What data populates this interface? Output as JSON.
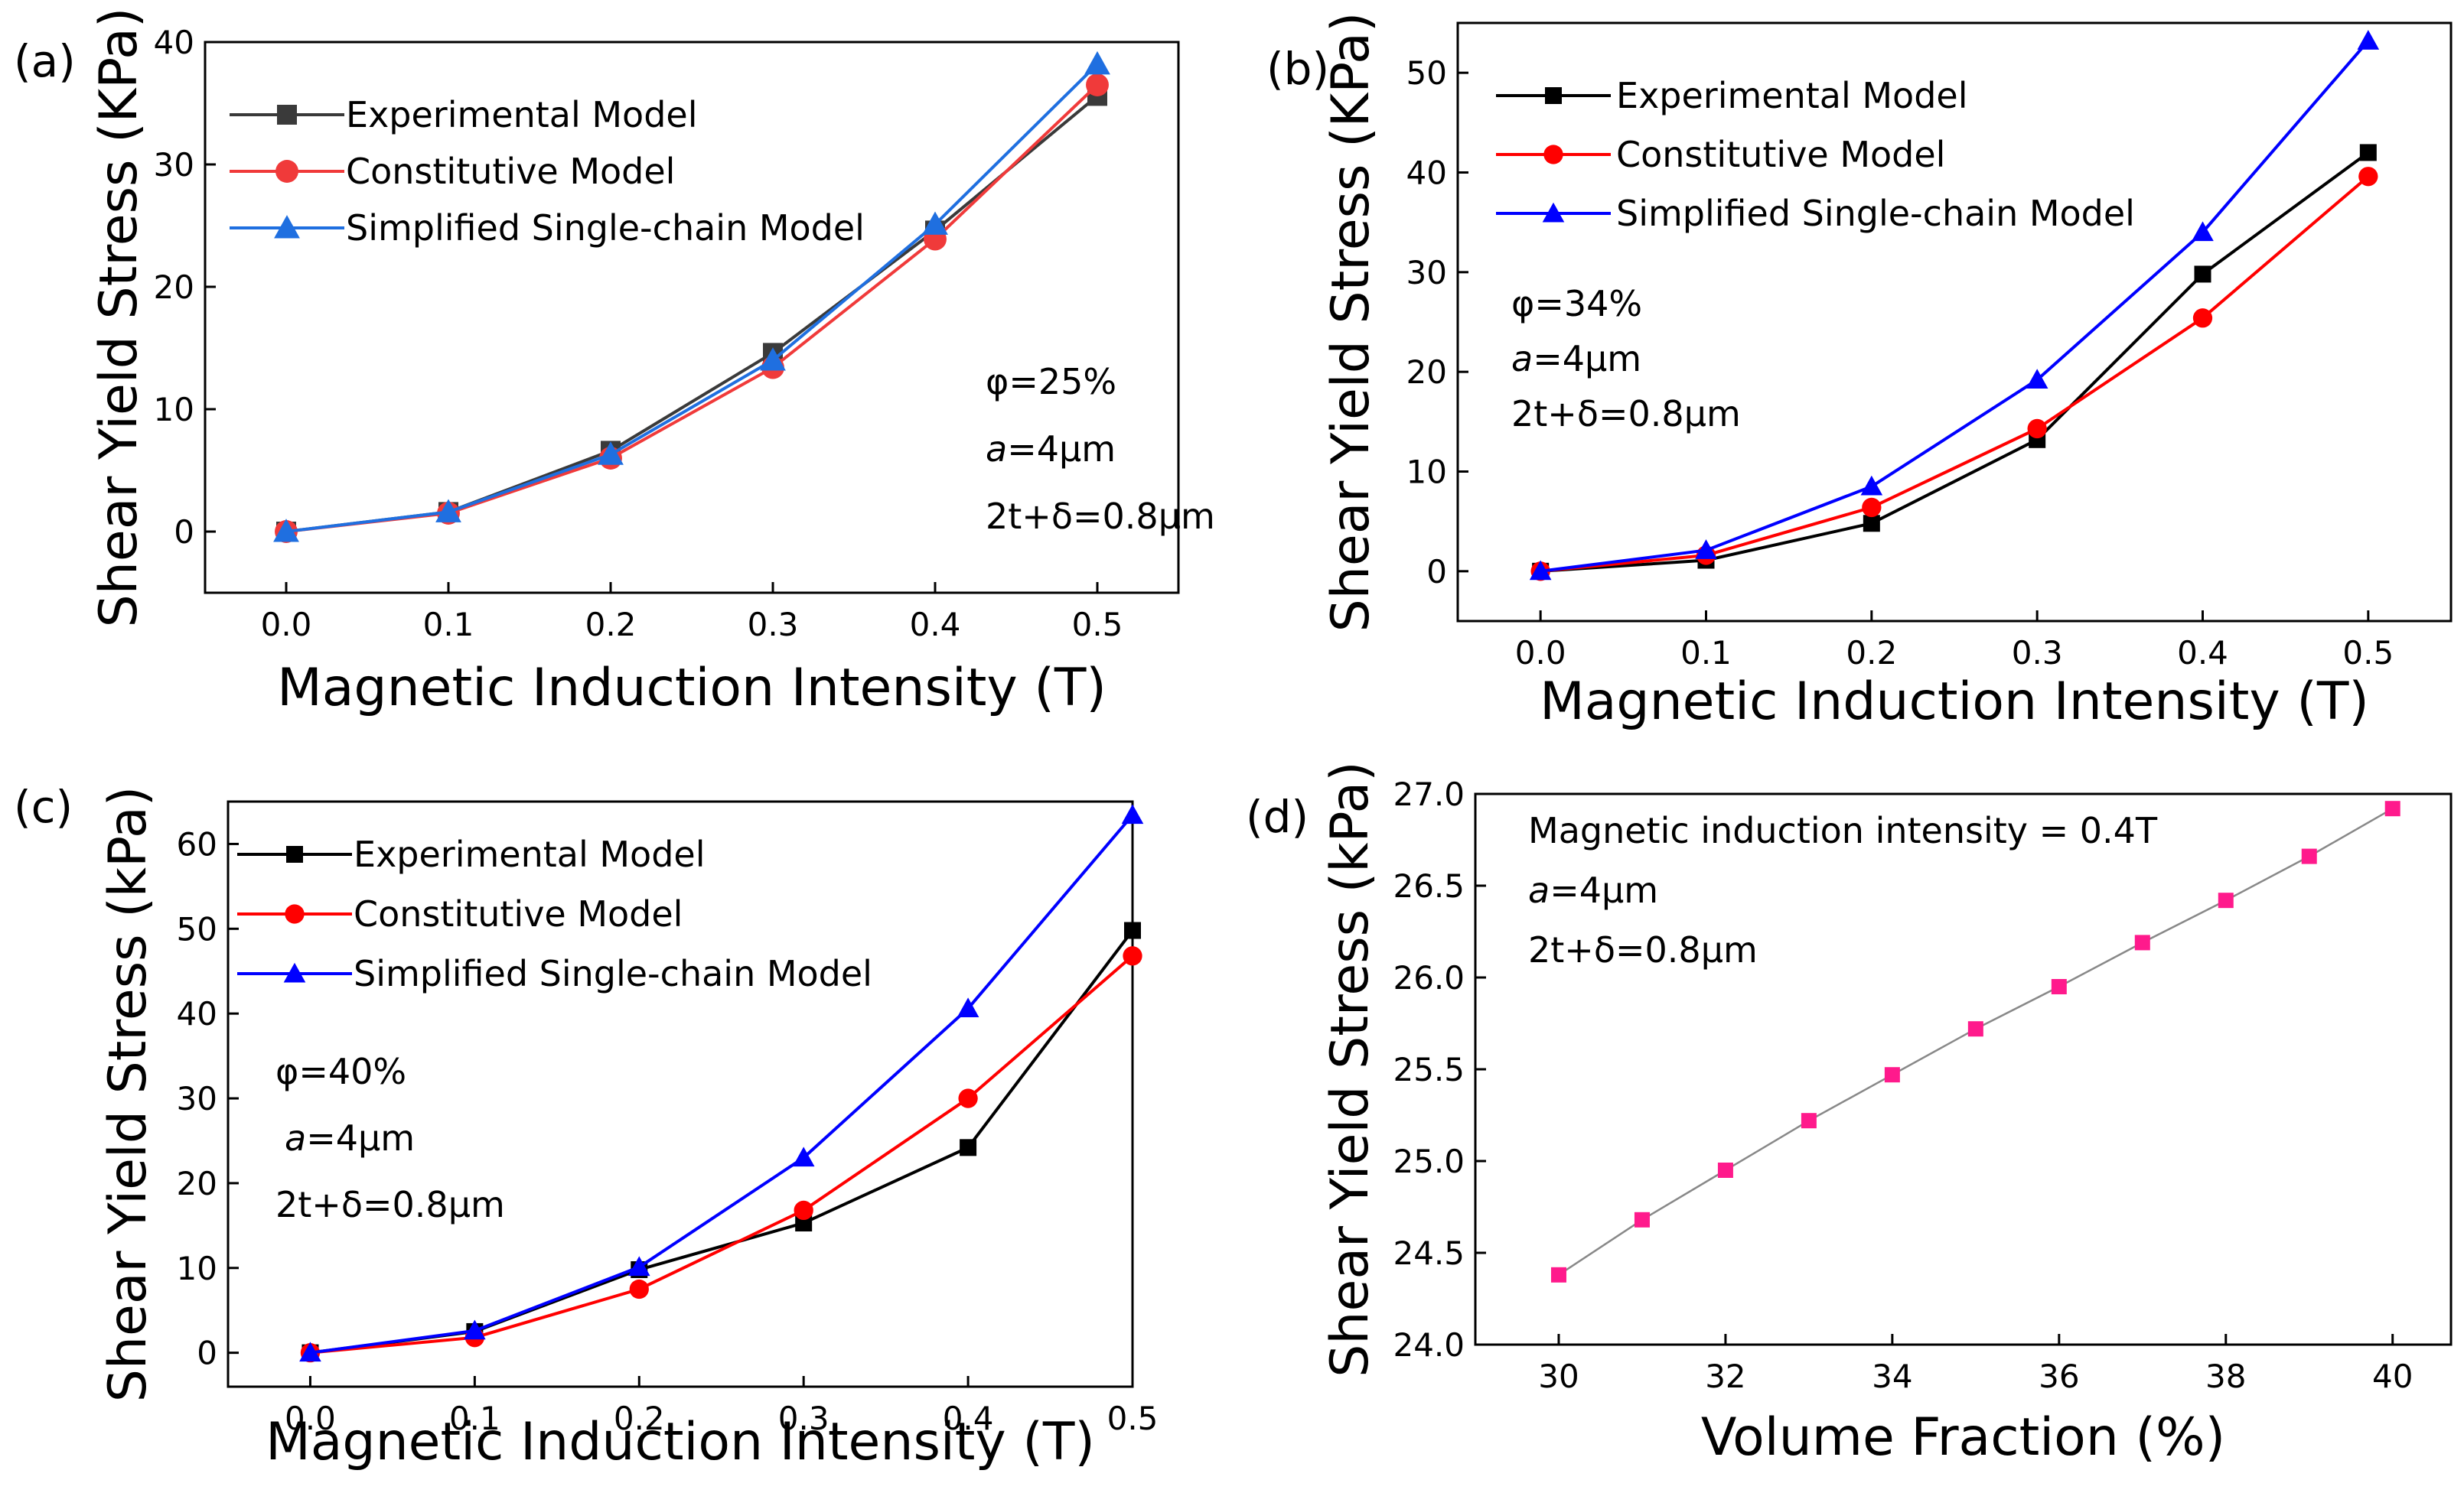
{
  "colors": {
    "experimental": "#000000",
    "constitutive": "#ff0000",
    "simplified": "#0000ff",
    "simplified_light": "#1f6fe0",
    "experimental_gray": "#3a3a3a",
    "constitutive_light": "#f03a3a",
    "volume": "#ff1a8c",
    "volume_line": "#888888"
  },
  "chart_data": [
    {
      "id": "a",
      "panel_label": "(a)",
      "type": "line",
      "xlabel": "Magnetic Induction Intensity (T)",
      "ylabel": "Shear Yield Stress (KPa)",
      "x": [
        0.0,
        0.1,
        0.2,
        0.3,
        0.4,
        0.5
      ],
      "x_tick_labels": [
        "0.0",
        "0.1",
        "0.2",
        "0.3",
        "0.4",
        "0.5"
      ],
      "xlim": [
        -0.05,
        0.55
      ],
      "ylim": [
        -5,
        40
      ],
      "y_ticks": [
        0,
        10,
        20,
        30,
        40
      ],
      "legend_position": "top-left",
      "series": [
        {
          "name": "Experimental Model",
          "marker": "square",
          "color_key": "experimental_gray",
          "values": [
            0.0,
            1.6,
            6.6,
            14.6,
            24.6,
            35.6
          ]
        },
        {
          "name": "Constitutive Model",
          "marker": "circle",
          "color_key": "constitutive_light",
          "values": [
            0.0,
            1.5,
            6.0,
            13.4,
            23.9,
            36.5
          ]
        },
        {
          "name": "Simplified Single-chain Model",
          "marker": "triangle",
          "color_key": "simplified_light",
          "values": [
            0.0,
            1.6,
            6.3,
            14.0,
            25.1,
            38.2
          ]
        }
      ],
      "annotations": [
        {
          "text": "φ=25%"
        },
        {
          "text": "a=4μm",
          "italic_prefix": "a"
        },
        {
          "text": "2t+δ=0.8μm"
        }
      ]
    },
    {
      "id": "b",
      "panel_label": "(b)",
      "type": "line",
      "xlabel": "Magnetic Induction Intensity (T)",
      "ylabel": "Shear Yield Stress (KPa)",
      "x": [
        0.0,
        0.1,
        0.2,
        0.3,
        0.4,
        0.5
      ],
      "x_tick_labels": [
        "0.0",
        "0.1",
        "0.2",
        "0.3",
        "0.4",
        "0.5"
      ],
      "xlim": [
        -0.05,
        0.55
      ],
      "ylim": [
        -5,
        55
      ],
      "y_ticks": [
        0,
        10,
        20,
        30,
        40,
        50
      ],
      "legend_position": "top-left",
      "series": [
        {
          "name": "Experimental Model",
          "marker": "square",
          "color_key": "experimental",
          "values": [
            0.0,
            1.1,
            4.8,
            13.2,
            29.8,
            42.0
          ]
        },
        {
          "name": "Constitutive Model",
          "marker": "circle",
          "color_key": "constitutive",
          "values": [
            0.0,
            1.6,
            6.4,
            14.3,
            25.4,
            39.6
          ]
        },
        {
          "name": "Simplified Single-chain Model",
          "marker": "triangle",
          "color_key": "simplified",
          "values": [
            0.0,
            2.1,
            8.5,
            19.2,
            34.0,
            53.2
          ]
        }
      ],
      "annotations": [
        {
          "text": "φ=34%"
        },
        {
          "text": "a=4μm",
          "italic_prefix": "a"
        },
        {
          "text": "2t+δ=0.8μm"
        }
      ]
    },
    {
      "id": "c",
      "panel_label": "(c)",
      "type": "line",
      "xlabel": "Magnetic Induction Intensity (T)",
      "ylabel": "Shear Yield Stress (kPa)",
      "x": [
        0.0,
        0.1,
        0.2,
        0.3,
        0.4,
        0.5
      ],
      "x_tick_labels": [
        "0.0",
        "0.1",
        "0.2",
        "0.3",
        "0.4",
        "0.5"
      ],
      "xlim": [
        -0.05,
        0.5
      ],
      "ylim": [
        -4,
        65
      ],
      "y_ticks": [
        0,
        10,
        20,
        30,
        40,
        50,
        60
      ],
      "legend_position": "top-left",
      "series": [
        {
          "name": "Experimental Model",
          "marker": "square",
          "color_key": "experimental",
          "values": [
            0.0,
            2.5,
            9.8,
            15.3,
            24.2,
            49.8
          ]
        },
        {
          "name": "Constitutive Model",
          "marker": "circle",
          "color_key": "constitutive",
          "values": [
            0.0,
            1.8,
            7.5,
            16.8,
            30.0,
            46.8
          ]
        },
        {
          "name": "Simplified Single-chain Model",
          "marker": "triangle",
          "color_key": "simplified",
          "values": [
            0.0,
            2.6,
            10.1,
            23.0,
            40.6,
            63.4
          ]
        }
      ],
      "annotations": [
        {
          "text": "φ=40%"
        },
        {
          "text": "a=4μm",
          "italic_prefix": "a"
        },
        {
          "text": "2t+δ=0.8μm"
        }
      ]
    },
    {
      "id": "d",
      "panel_label": "(d)",
      "type": "line",
      "xlabel": "Volume Fraction (%)",
      "ylabel": "Shear Yield Stress (kPa)",
      "x": [
        30,
        31,
        32,
        33,
        34,
        35,
        36,
        37,
        38,
        39,
        40
      ],
      "x_ticks": [
        30,
        32,
        34,
        36,
        38,
        40
      ],
      "x_tick_labels": [
        "30",
        "32",
        "34",
        "36",
        "38",
        "40"
      ],
      "xlim": [
        29,
        40.7
      ],
      "ylim": [
        24.0,
        27.0
      ],
      "y_ticks": [
        24.0,
        24.5,
        25.0,
        25.5,
        26.0,
        26.5,
        27.0
      ],
      "y_tick_labels": [
        "24.0",
        "24.5",
        "25.0",
        "25.5",
        "26.0",
        "26.5",
        "27.0"
      ],
      "series": [
        {
          "name": "Shear Yield Stress",
          "marker": "square",
          "color_key": "volume",
          "line_color_key": "volume_line",
          "values": [
            24.38,
            24.68,
            24.95,
            25.22,
            25.47,
            25.72,
            25.95,
            26.19,
            26.42,
            26.66,
            26.92
          ]
        }
      ],
      "annotations": [
        {
          "text": "Magnetic induction intensity = 0.4T"
        },
        {
          "text": "a=4μm",
          "italic_prefix": "a"
        },
        {
          "text": "2t+δ=0.8μm"
        }
      ]
    }
  ]
}
